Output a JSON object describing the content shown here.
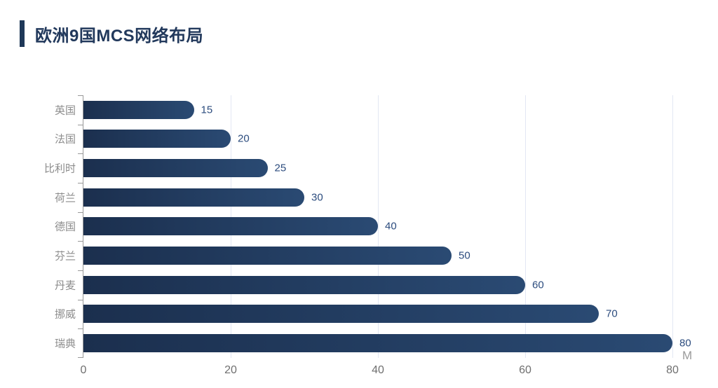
{
  "header": {
    "title": "欧洲9国MCS网络布局"
  },
  "chart_data": {
    "type": "bar",
    "orientation": "horizontal",
    "title": "欧洲9国MCS网络布局",
    "categories": [
      "英国",
      "法国",
      "比利时",
      "荷兰",
      "德国",
      "芬兰",
      "丹麦",
      "挪威",
      "瑞典"
    ],
    "values": [
      15,
      20,
      25,
      30,
      40,
      50,
      60,
      70,
      80
    ],
    "x_ticks": [
      0,
      20,
      40,
      60,
      80
    ],
    "xlim": [
      0,
      80
    ],
    "xlabel_unit": "M",
    "grid": "vertical gridlines at 20/40/60/80",
    "legend": "none",
    "colors": {
      "bar_gradient_start": "#1b2f4e",
      "bar_gradient_end": "#2a4a73",
      "value_label": "#2c4c7e",
      "category_label": "#8c8c8c",
      "tick_label": "#6f6f6f",
      "unit_label": "#9a9a9a",
      "gridline": "#e2e7f3",
      "axis_line": "#999999",
      "title": "#22395c",
      "accent": "#1e3858"
    }
  }
}
